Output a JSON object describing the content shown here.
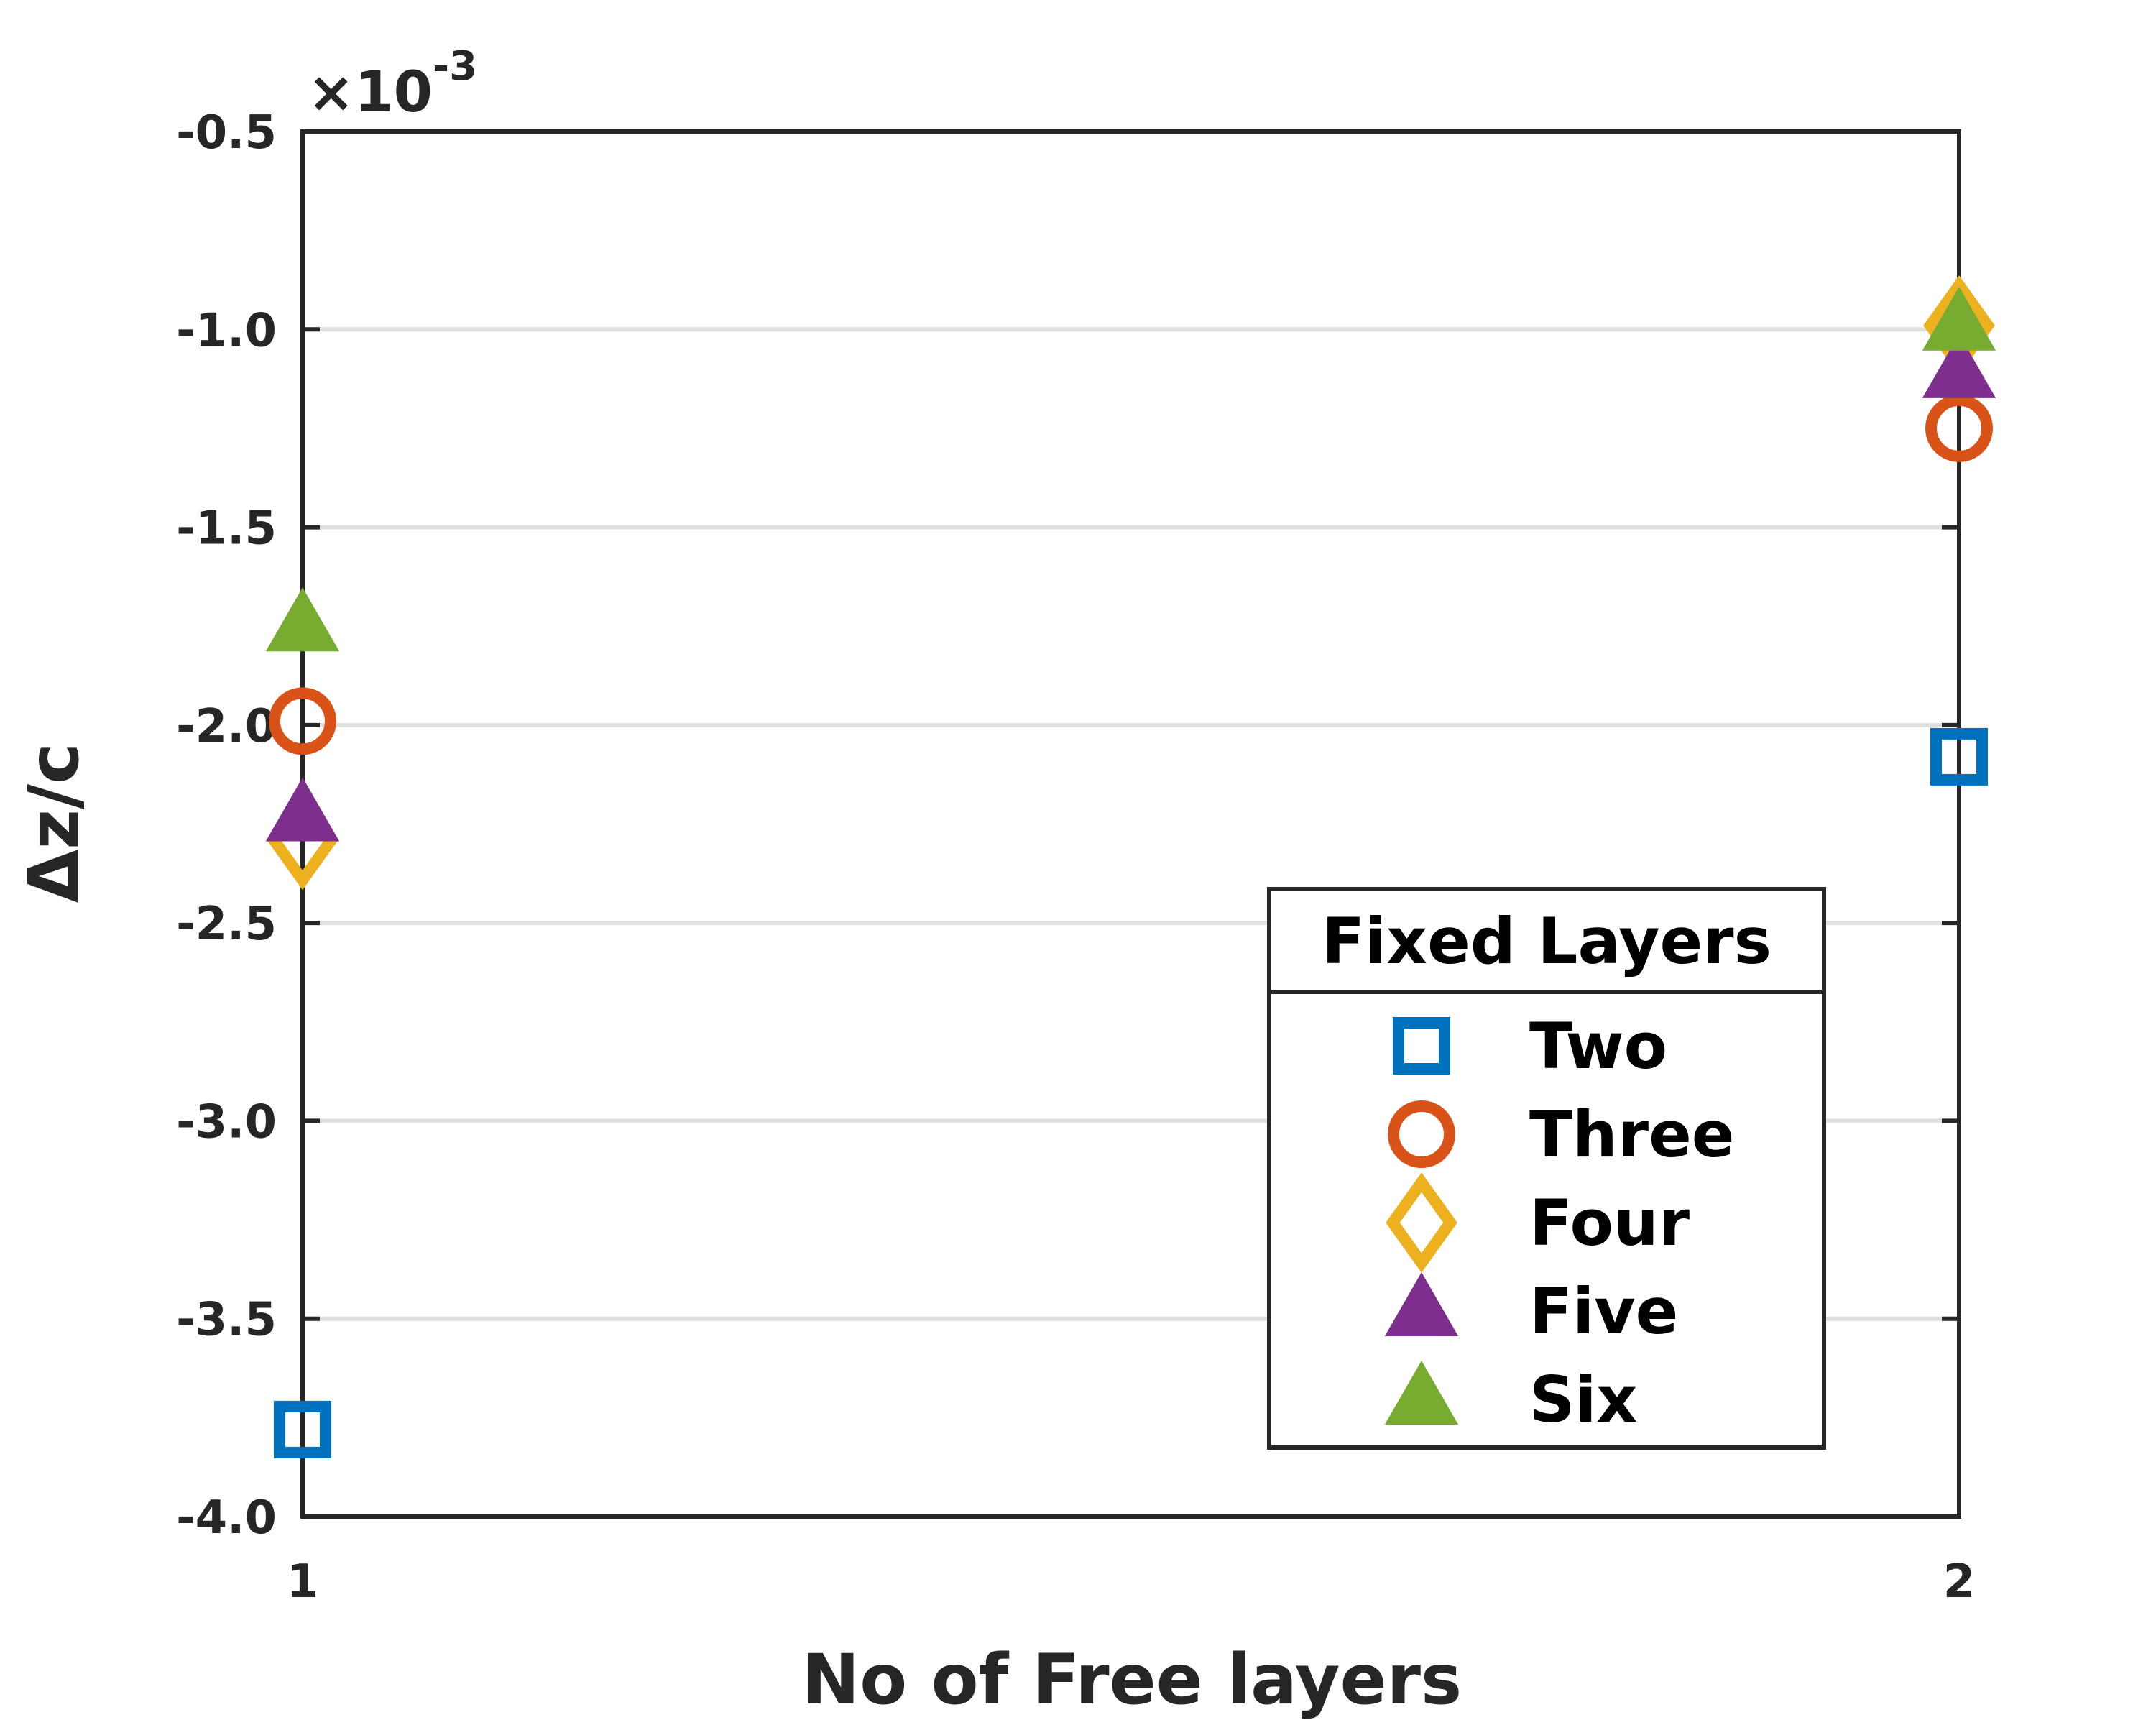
{
  "chart_data": {
    "type": "scatter",
    "xlabel": "No of Free layers",
    "ylabel": "Δz/c",
    "exponent": {
      "prefix": "×10",
      "power": "-3"
    },
    "xlim": [
      1,
      2
    ],
    "ylim": [
      -4.0,
      -0.5
    ],
    "x_ticks": [
      1,
      2
    ],
    "x_tick_labels": [
      "1",
      "2"
    ],
    "y_ticks": [
      -4.0,
      -3.5,
      -3.0,
      -2.5,
      -2.0,
      -1.5,
      -1.0,
      -0.5
    ],
    "y_tick_labels": [
      "-4.0",
      "-3.5",
      "-3.0",
      "-2.5",
      "-2.0",
      "-1.5",
      "-1.0",
      "-0.5"
    ],
    "grid": "horizontal",
    "legend": {
      "title": "Fixed Layers",
      "placement": "bottom-right"
    },
    "series": [
      {
        "name": "Two",
        "marker": "square",
        "color": "#0072BD",
        "x": [
          1,
          2
        ],
        "y": [
          -3.78,
          -2.08
        ]
      },
      {
        "name": "Three",
        "marker": "circle",
        "color": "#D95319",
        "x": [
          1,
          2
        ],
        "y": [
          -1.99,
          -1.25
        ]
      },
      {
        "name": "Four",
        "marker": "diamond",
        "color": "#EDB120",
        "x": [
          1,
          2
        ],
        "y": [
          -2.29,
          -0.99
        ]
      },
      {
        "name": "Five",
        "marker": "triangle",
        "color": "#7E2F8E",
        "x": [
          1,
          2
        ],
        "y": [
          -2.23,
          -1.11
        ]
      },
      {
        "name": "Six",
        "marker": "triangle",
        "color": "#77AC30",
        "x": [
          1,
          2
        ],
        "y": [
          -1.75,
          -0.99
        ]
      }
    ]
  }
}
